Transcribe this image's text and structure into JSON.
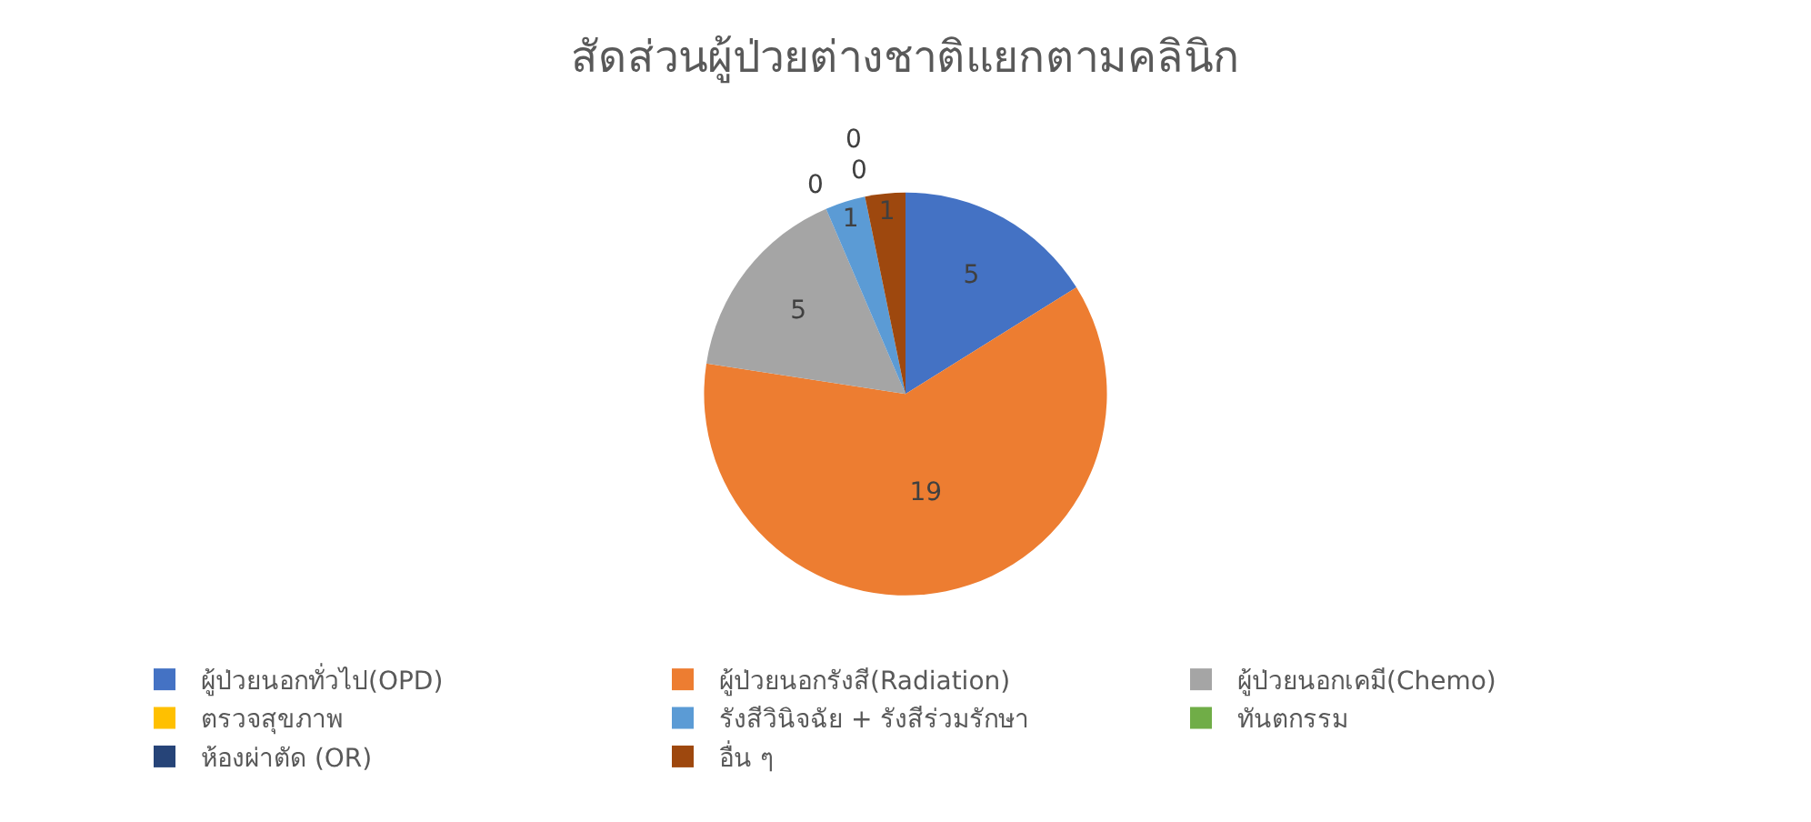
{
  "chart_data": {
    "type": "pie",
    "title": "สัดส่วนผู้ป่วยต่างชาติแยกตามคลินิก",
    "categories": [
      "ผู้ป่วยนอกทั่วไป(OPD)",
      "ผู้ป่วยนอกรังสี(Radiation)",
      "ผู้ป่วยนอกเคมี(Chemo)",
      "ตรวจสุขภาพ",
      "รังสีวินิจฉัย + รังสีร่วมรักษา",
      "ทันตกรรม",
      "ห้องผ่าตัด (OR)",
      "อื่น ๆ"
    ],
    "values": [
      5,
      19,
      5,
      0,
      1,
      0,
      0,
      1
    ],
    "colors": [
      "#4472c4",
      "#ed7d31",
      "#a5a5a5",
      "#ffc000",
      "#5b9bd5",
      "#70ad47",
      "#264478",
      "#9e480e"
    ],
    "value_labels": [
      "5",
      "19",
      "5",
      "0",
      "1",
      "0",
      "0",
      "1"
    ],
    "legend": "bottom"
  }
}
